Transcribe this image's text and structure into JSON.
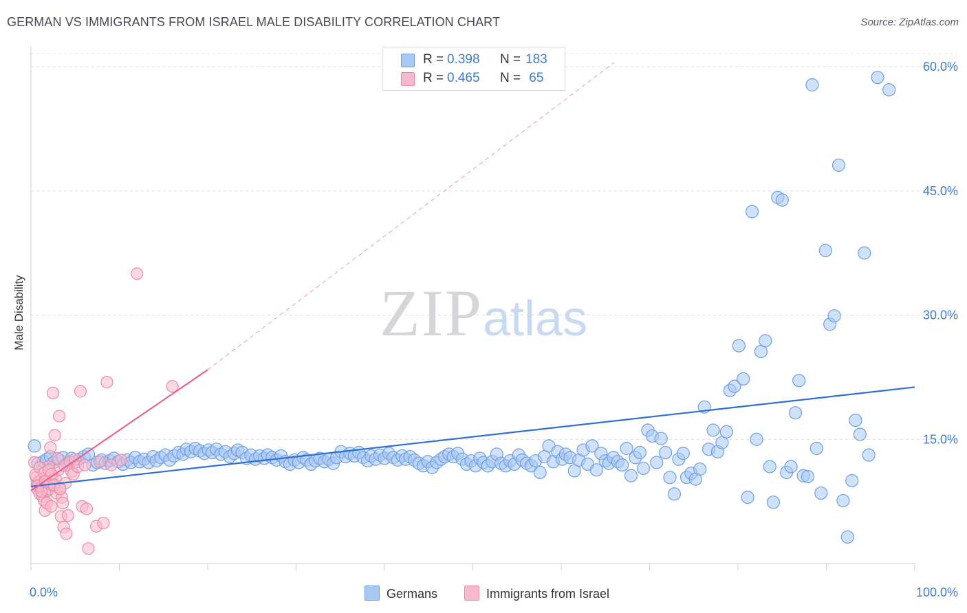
{
  "chart_data": {
    "type": "scatter",
    "title": "GERMAN VS IMMIGRANTS FROM ISRAEL MALE DISABILITY CORRELATION CHART",
    "source": "Source: ZipAtlas.com",
    "ylabel": "Male Disability",
    "xlabel": "",
    "x_tick_labels": [
      "0.0%",
      "100.0%"
    ],
    "y_tick_labels": [
      "15.0%",
      "30.0%",
      "45.0%",
      "60.0%"
    ],
    "xlim": [
      0,
      100
    ],
    "ylim": [
      0,
      60
    ],
    "grid": true,
    "watermark": {
      "zip": "ZIP",
      "atlas": "atlas"
    },
    "legend": [
      {
        "r_label": "R =",
        "r_value": "0.398",
        "n_label": "N =",
        "n_value": "183",
        "color": "#a9c9f5"
      },
      {
        "r_label": "R =",
        "r_value": "0.465",
        "n_label": "N =",
        "n_value": " 65",
        "color": "#f7b9cc"
      }
    ],
    "series": [
      {
        "name": "Germans",
        "color": "#a9c9f5",
        "edge": "#6d9fe0",
        "trend": {
          "x": [
            0,
            100
          ],
          "y": [
            9.3,
            21.3
          ],
          "color": "#2e70d0"
        },
        "points": [
          [
            0.4,
            14.2
          ],
          [
            0.8,
            12.1
          ],
          [
            1.4,
            12.3
          ],
          [
            1.8,
            12.6
          ],
          [
            2.2,
            12.9
          ],
          [
            2.6,
            12.2
          ],
          [
            3.2,
            12.5
          ],
          [
            3.6,
            12.8
          ],
          [
            4.1,
            12.0
          ],
          [
            4.6,
            12.7
          ],
          [
            5.1,
            12.3
          ],
          [
            5.5,
            12.6
          ],
          [
            6.0,
            12.9
          ],
          [
            6.5,
            13.2
          ],
          [
            7.0,
            11.9
          ],
          [
            7.5,
            12.2
          ],
          [
            8.0,
            12.5
          ],
          [
            8.4,
            12.1
          ],
          [
            8.9,
            12.4
          ],
          [
            9.4,
            12.7
          ],
          [
            9.9,
            12.3
          ],
          [
            10.4,
            12.0
          ],
          [
            10.9,
            12.5
          ],
          [
            11.3,
            12.2
          ],
          [
            11.8,
            12.8
          ],
          [
            12.3,
            12.3
          ],
          [
            12.8,
            12.6
          ],
          [
            13.3,
            12.2
          ],
          [
            13.8,
            12.9
          ],
          [
            14.2,
            12.4
          ],
          [
            14.7,
            12.8
          ],
          [
            15.2,
            13.1
          ],
          [
            15.7,
            12.5
          ],
          [
            16.2,
            13.0
          ],
          [
            16.7,
            13.4
          ],
          [
            17.2,
            13.2
          ],
          [
            17.6,
            13.8
          ],
          [
            18.1,
            13.5
          ],
          [
            18.6,
            13.9
          ],
          [
            19.1,
            13.6
          ],
          [
            19.6,
            13.3
          ],
          [
            20.1,
            13.7
          ],
          [
            20.5,
            13.4
          ],
          [
            21.0,
            13.8
          ],
          [
            21.5,
            13.2
          ],
          [
            22.0,
            13.5
          ],
          [
            22.5,
            12.9
          ],
          [
            23.0,
            13.3
          ],
          [
            23.4,
            13.7
          ],
          [
            23.9,
            13.4
          ],
          [
            24.4,
            12.7
          ],
          [
            24.9,
            13.1
          ],
          [
            25.4,
            12.6
          ],
          [
            25.9,
            13.0
          ],
          [
            26.4,
            12.7
          ],
          [
            26.8,
            13.1
          ],
          [
            27.3,
            12.8
          ],
          [
            27.8,
            12.5
          ],
          [
            28.3,
            13.0
          ],
          [
            28.8,
            12.3
          ],
          [
            29.3,
            12.0
          ],
          [
            29.8,
            12.5
          ],
          [
            30.3,
            12.2
          ],
          [
            30.8,
            12.8
          ],
          [
            31.2,
            12.5
          ],
          [
            31.7,
            12.0
          ],
          [
            32.2,
            12.4
          ],
          [
            32.7,
            12.7
          ],
          [
            33.2,
            12.3
          ],
          [
            33.7,
            12.6
          ],
          [
            34.2,
            12.1
          ],
          [
            34.6,
            12.8
          ],
          [
            35.1,
            13.5
          ],
          [
            35.6,
            12.9
          ],
          [
            36.1,
            13.3
          ],
          [
            36.6,
            13.0
          ],
          [
            37.1,
            13.4
          ],
          [
            37.6,
            12.8
          ],
          [
            38.1,
            12.4
          ],
          [
            38.5,
            13.0
          ],
          [
            39.0,
            12.6
          ],
          [
            39.5,
            13.1
          ],
          [
            40.0,
            12.7
          ],
          [
            40.5,
            13.3
          ],
          [
            41.0,
            12.8
          ],
          [
            41.5,
            12.5
          ],
          [
            42.0,
            13.0
          ],
          [
            42.4,
            12.6
          ],
          [
            42.9,
            12.9
          ],
          [
            43.4,
            12.5
          ],
          [
            43.9,
            12.1
          ],
          [
            44.4,
            11.8
          ],
          [
            44.9,
            12.3
          ],
          [
            45.4,
            11.6
          ],
          [
            45.9,
            12.2
          ],
          [
            46.4,
            12.6
          ],
          [
            46.8,
            12.9
          ],
          [
            47.3,
            13.2
          ],
          [
            47.8,
            12.9
          ],
          [
            48.3,
            13.3
          ],
          [
            48.8,
            12.6
          ],
          [
            49.3,
            12.0
          ],
          [
            49.8,
            12.4
          ],
          [
            50.3,
            11.8
          ],
          [
            50.8,
            12.7
          ],
          [
            51.2,
            12.2
          ],
          [
            51.7,
            11.8
          ],
          [
            52.2,
            12.3
          ],
          [
            52.7,
            13.2
          ],
          [
            53.2,
            12.1
          ],
          [
            53.7,
            11.8
          ],
          [
            54.2,
            12.4
          ],
          [
            54.7,
            12.0
          ],
          [
            55.2,
            13.1
          ],
          [
            55.6,
            12.5
          ],
          [
            56.1,
            12.1
          ],
          [
            56.6,
            11.8
          ],
          [
            57.1,
            12.4
          ],
          [
            57.6,
            11.0
          ],
          [
            58.1,
            12.9
          ],
          [
            58.6,
            14.2
          ],
          [
            59.1,
            12.3
          ],
          [
            59.6,
            13.5
          ],
          [
            60.1,
            12.6
          ],
          [
            60.5,
            13.2
          ],
          [
            61.0,
            12.8
          ],
          [
            61.5,
            11.2
          ],
          [
            62.0,
            12.5
          ],
          [
            62.5,
            13.7
          ],
          [
            63.0,
            12.0
          ],
          [
            63.5,
            14.2
          ],
          [
            64.0,
            11.3
          ],
          [
            64.5,
            13.3
          ],
          [
            65.0,
            12.4
          ],
          [
            65.4,
            12.1
          ],
          [
            65.9,
            12.8
          ],
          [
            66.4,
            12.3
          ],
          [
            66.9,
            11.9
          ],
          [
            67.4,
            13.9
          ],
          [
            67.9,
            10.6
          ],
          [
            68.4,
            12.8
          ],
          [
            68.9,
            13.4
          ],
          [
            69.3,
            11.5
          ],
          [
            69.8,
            16.1
          ],
          [
            70.3,
            15.4
          ],
          [
            70.8,
            12.2
          ],
          [
            71.3,
            15.1
          ],
          [
            71.8,
            13.4
          ],
          [
            72.3,
            10.4
          ],
          [
            72.8,
            8.4
          ],
          [
            73.3,
            12.6
          ],
          [
            73.8,
            13.3
          ],
          [
            74.2,
            10.4
          ],
          [
            74.7,
            10.9
          ],
          [
            75.2,
            10.2
          ],
          [
            75.7,
            11.4
          ],
          [
            76.2,
            18.9
          ],
          [
            76.7,
            13.8
          ],
          [
            77.2,
            16.1
          ],
          [
            77.7,
            13.5
          ],
          [
            78.2,
            14.6
          ],
          [
            78.7,
            15.9
          ],
          [
            79.1,
            20.9
          ],
          [
            79.6,
            21.4
          ],
          [
            80.1,
            26.3
          ],
          [
            80.6,
            22.3
          ],
          [
            81.1,
            8.0
          ],
          [
            81.6,
            42.5
          ],
          [
            82.1,
            15.0
          ],
          [
            82.6,
            25.6
          ],
          [
            83.1,
            26.9
          ],
          [
            83.6,
            11.7
          ],
          [
            84.0,
            7.4
          ],
          [
            84.5,
            44.2
          ],
          [
            85.0,
            43.9
          ],
          [
            85.5,
            11.0
          ],
          [
            86.0,
            11.7
          ],
          [
            86.5,
            18.2
          ],
          [
            86.9,
            22.1
          ],
          [
            87.4,
            10.6
          ],
          [
            87.9,
            10.5
          ],
          [
            88.4,
            57.8
          ],
          [
            88.9,
            13.9
          ],
          [
            89.4,
            8.5
          ],
          [
            89.9,
            37.8
          ],
          [
            90.4,
            28.9
          ],
          [
            90.9,
            29.9
          ],
          [
            91.4,
            48.1
          ],
          [
            91.9,
            7.6
          ],
          [
            92.4,
            3.2
          ],
          [
            92.9,
            10.0
          ],
          [
            93.3,
            17.3
          ],
          [
            93.8,
            15.6
          ],
          [
            94.3,
            37.5
          ],
          [
            94.8,
            13.1
          ],
          [
            95.8,
            58.7
          ],
          [
            97.1,
            57.2
          ]
        ]
      },
      {
        "name": "Immigrants from Israel",
        "color": "#f7b9cc",
        "edge": "#ec8aa8",
        "trend": {
          "x": [
            0,
            20
          ],
          "y": [
            8.8,
            23.4
          ],
          "color": "#e8648e"
        },
        "trend_extension": {
          "x": [
            20,
            66
          ],
          "y": [
            23.4,
            60.5
          ]
        },
        "points": [
          [
            0.4,
            12.2
          ],
          [
            0.6,
            10.4
          ],
          [
            0.7,
            9.6
          ],
          [
            0.8,
            8.9
          ],
          [
            0.9,
            9.9
          ],
          [
            1.0,
            8.4
          ],
          [
            1.1,
            9.2
          ],
          [
            1.2,
            10.1
          ],
          [
            1.3,
            8.1
          ],
          [
            1.4,
            9.4
          ],
          [
            1.5,
            7.6
          ],
          [
            1.6,
            6.4
          ],
          [
            1.7,
            9.8
          ],
          [
            1.8,
            7.3
          ],
          [
            1.9,
            8.8
          ],
          [
            2.0,
            11.7
          ],
          [
            2.1,
            9.0
          ],
          [
            2.2,
            14.0
          ],
          [
            2.3,
            6.9
          ],
          [
            2.4,
            10.5
          ],
          [
            2.5,
            20.6
          ],
          [
            2.6,
            9.3
          ],
          [
            2.7,
            15.5
          ],
          [
            2.8,
            10.2
          ],
          [
            2.9,
            8.5
          ],
          [
            3.0,
            12.7
          ],
          [
            3.1,
            11.3
          ],
          [
            3.2,
            17.8
          ],
          [
            3.3,
            9.1
          ],
          [
            3.4,
            5.7
          ],
          [
            3.5,
            8.0
          ],
          [
            3.6,
            7.3
          ],
          [
            3.7,
            4.4
          ],
          [
            3.8,
            11.8
          ],
          [
            3.9,
            9.7
          ],
          [
            4.0,
            3.6
          ],
          [
            4.2,
            5.8
          ],
          [
            4.4,
            12.3
          ],
          [
            4.6,
            11.1
          ],
          [
            4.8,
            10.8
          ],
          [
            5.0,
            12.6
          ],
          [
            5.3,
            11.7
          ],
          [
            5.6,
            20.8
          ],
          [
            5.8,
            6.9
          ],
          [
            6.1,
            11.9
          ],
          [
            6.3,
            6.6
          ],
          [
            6.5,
            1.8
          ],
          [
            7.4,
            4.5
          ],
          [
            7.8,
            12.3
          ],
          [
            8.2,
            4.9
          ],
          [
            8.6,
            21.9
          ],
          [
            9.1,
            11.9
          ],
          [
            10.2,
            12.5
          ],
          [
            12.0,
            35.0
          ],
          [
            16.0,
            21.4
          ],
          [
            0.5,
            10.7
          ],
          [
            1.0,
            11.6
          ],
          [
            1.5,
            10.9
          ],
          [
            2.0,
            11.3
          ],
          [
            2.3,
            10.8
          ],
          [
            0.8,
            9.4
          ],
          [
            1.2,
            8.7
          ],
          [
            1.6,
            9.9
          ],
          [
            2.6,
            9.5
          ],
          [
            3.3,
            9.0
          ]
        ]
      }
    ]
  },
  "bottom_legend": [
    {
      "label": "Germans",
      "color": "#a9c9f5"
    },
    {
      "label": "Immigrants from Israel",
      "color": "#f7b9cc"
    }
  ]
}
